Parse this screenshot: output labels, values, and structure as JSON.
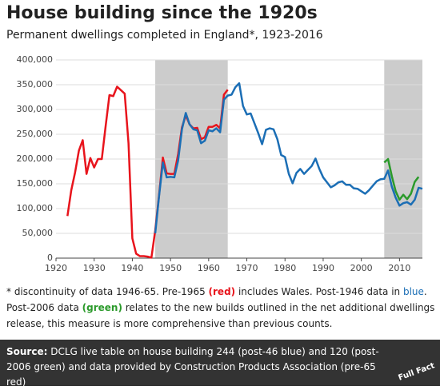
{
  "chart_data": {
    "type": "line",
    "title": "House building since the 1920s",
    "subtitle": "Permanent dwellings completed in England*, 1923-2016",
    "xlim": [
      1920,
      2016
    ],
    "ylim": [
      0,
      400000
    ],
    "xticks": [
      1920,
      1930,
      1940,
      1950,
      1960,
      1970,
      1980,
      1990,
      2000,
      2010
    ],
    "yticks": [
      0,
      {
        "value": 50000,
        "label": "50,000"
      },
      {
        "value": 100000,
        "label": "100,000"
      },
      {
        "value": 150000,
        "label": "150,000"
      },
      {
        "value": 200000,
        "label": "200,000"
      },
      {
        "value": 250000,
        "label": "250,000"
      },
      {
        "value": 300000,
        "label": "300,000"
      },
      {
        "value": 350000,
        "label": "350,000"
      },
      {
        "value": 400000,
        "label": "400,000"
      }
    ],
    "grid": true,
    "shaded_ranges": [
      [
        1946,
        1965
      ],
      [
        2006,
        2016
      ]
    ],
    "shade_color": "#cccccc",
    "series": [
      {
        "color": "#e8141c",
        "x": [
          1923,
          1924,
          1925,
          1926,
          1927,
          1928,
          1929,
          1930,
          1931,
          1932,
          1933,
          1934,
          1935,
          1936,
          1937,
          1938,
          1939,
          1940,
          1941,
          1942,
          1943,
          1944,
          1945,
          1946,
          1947,
          1948,
          1949,
          1950,
          1951,
          1952,
          1953,
          1954,
          1955,
          1956,
          1957,
          1958,
          1959,
          1960,
          1961,
          1962,
          1963,
          1964,
          1965
        ],
        "values": [
          85000,
          137000,
          173000,
          217000,
          238000,
          170000,
          202000,
          183000,
          200000,
          200000,
          266000,
          329000,
          327000,
          346000,
          339000,
          332000,
          232000,
          40000,
          9000,
          4000,
          4000,
          3000,
          1000,
          56000,
          127000,
          203000,
          171000,
          170000,
          170000,
          210000,
          264000,
          288000,
          270000,
          262000,
          263000,
          240000,
          244000,
          265000,
          265000,
          269000,
          262000,
          330000,
          340000
        ]
      },
      {
        "color": "#1b6eb5",
        "x": [
          1946,
          1947,
          1948,
          1949,
          1950,
          1951,
          1952,
          1953,
          1954,
          1955,
          1956,
          1957,
          1958,
          1959,
          1960,
          1961,
          1962,
          1963,
          1964,
          1965,
          1966,
          1967,
          1968,
          1969,
          1970,
          1971,
          1972,
          1973,
          1974,
          1975,
          1976,
          1977,
          1978,
          1979,
          1980,
          1981,
          1982,
          1983,
          1984,
          1985,
          1986,
          1987,
          1988,
          1989,
          1990,
          1991,
          1992,
          1993,
          1994,
          1995,
          1996,
          1997,
          1998,
          1999,
          2000,
          2001,
          2002,
          2003,
          2004,
          2005,
          2006,
          2007,
          2008,
          2009,
          2010,
          2011,
          2012,
          2013,
          2014,
          2015,
          2016
        ],
        "values": [
          50000,
          125000,
          193000,
          163000,
          164000,
          163000,
          197000,
          260000,
          293000,
          270000,
          260000,
          258000,
          232000,
          237000,
          258000,
          256000,
          262000,
          254000,
          320000,
          328000,
          330000,
          345000,
          353000,
          307000,
          290000,
          292000,
          272000,
          252000,
          230000,
          259000,
          262000,
          260000,
          240000,
          208000,
          204000,
          170000,
          151000,
          172000,
          180000,
          170000,
          178000,
          186000,
          201000,
          180000,
          163000,
          153000,
          143000,
          147000,
          153000,
          155000,
          148000,
          148000,
          141000,
          140000,
          135000,
          130000,
          137000,
          146000,
          155000,
          159000,
          160000,
          177000,
          144000,
          122000,
          106000,
          111000,
          113000,
          108000,
          118000,
          142000,
          140000
        ]
      },
      {
        "color": "#2b9a2b",
        "x": [
          2006,
          2007,
          2008,
          2009,
          2010,
          2011,
          2012,
          2013,
          2014,
          2015
        ],
        "values": [
          193000,
          200000,
          165000,
          135000,
          118000,
          128000,
          119000,
          130000,
          154000,
          164000
        ]
      }
    ],
    "footnote": [
      {
        "text": "* discontinuity of data 1946-65. Pre-1965 "
      },
      {
        "text": "(red)",
        "color": "#e8141c",
        "bold": true
      },
      {
        "text": " includes Wales. Post-1946 data in "
      },
      {
        "text": "blue",
        "color": "#1b6eb5"
      },
      {
        "text": ". Post-2006 data "
      },
      {
        "text": "(green)",
        "color": "#2b9a2b",
        "bold": true
      },
      {
        "text": " relates to the new builds outlined in the net additional dwellings release, this measure is more comprehensive than previous counts."
      }
    ],
    "source_label": "Source:",
    "source": "DCLG live table on house building 244 (post-46 blue) and 120 (post-2006 green) and data provided by Construction Products Association (pre-65 red)",
    "logo": "Full Fact"
  }
}
